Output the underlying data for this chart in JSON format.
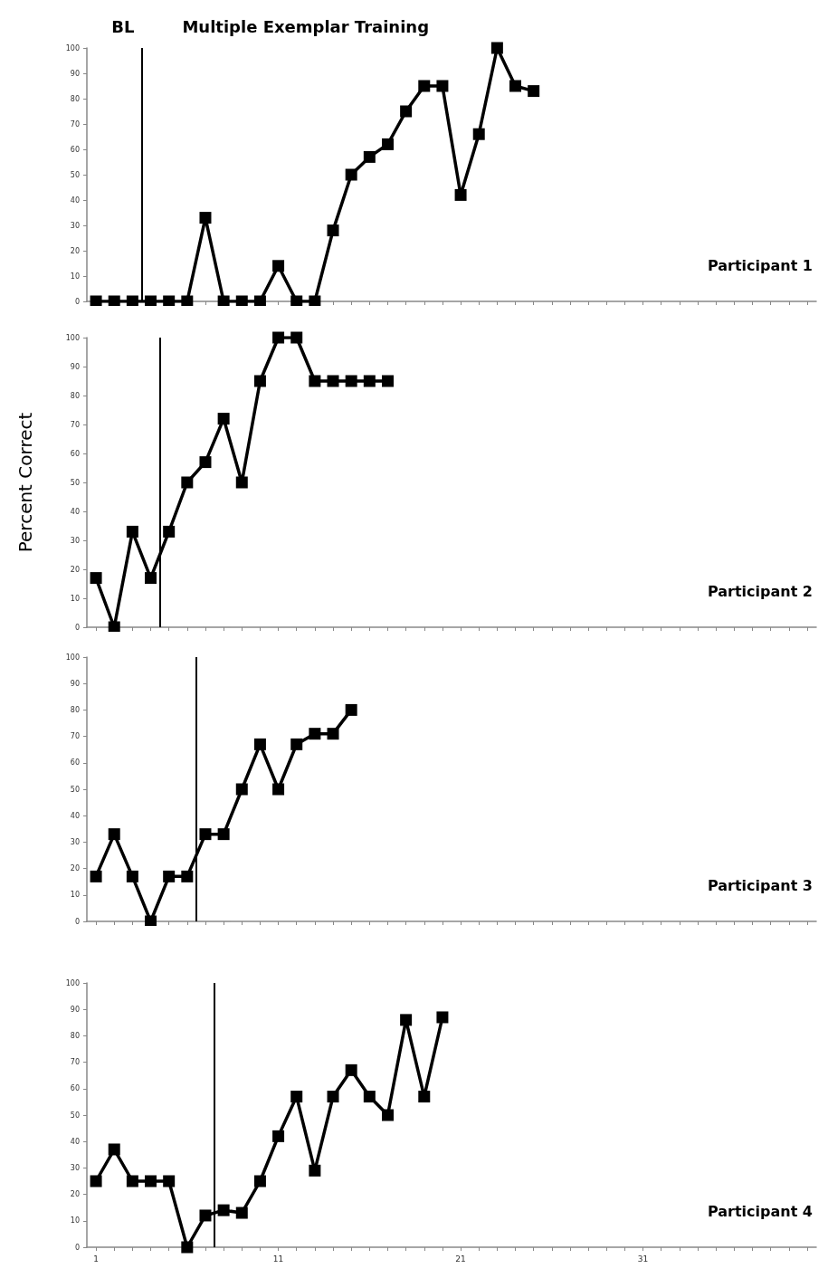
{
  "chart_data": [
    {
      "type": "line",
      "annotations": [
        "BL",
        "Multiple Exemplar Training",
        "Participant 1"
      ],
      "x": [
        1,
        2,
        3,
        4,
        5,
        6,
        7,
        8,
        9,
        10,
        11,
        12,
        13,
        14,
        15,
        16,
        17,
        18,
        19,
        20,
        21,
        22,
        23,
        24,
        25
      ],
      "series": [
        {
          "color": "#000000",
          "values": [
            0,
            0,
            0,
            0,
            0,
            0,
            33,
            0,
            0,
            0,
            14,
            0,
            0,
            28,
            50,
            57,
            62,
            75,
            85,
            85,
            42,
            66,
            100,
            85,
            83
          ]
        }
      ],
      "ref_lines": [
        {
          "axis": "x",
          "value": 3.5,
          "color": "#000000"
        }
      ],
      "xlim": [
        0.5,
        40.5
      ],
      "xticks": [
        1,
        {
          "value": 2,
          "label": null
        },
        {
          "value": 3,
          "label": null
        },
        {
          "value": 4,
          "label": null
        },
        {
          "value": 5,
          "label": null
        },
        {
          "value": 6,
          "label": null
        },
        {
          "value": 7,
          "label": null
        },
        {
          "value": 8,
          "label": null
        },
        {
          "value": 9,
          "label": null
        },
        {
          "value": 10,
          "label": null
        },
        11,
        {
          "value": 12,
          "label": null
        },
        {
          "value": 13,
          "label": null
        },
        {
          "value": 14,
          "label": null
        },
        {
          "value": 15,
          "label": null
        },
        {
          "value": 16,
          "label": null
        },
        {
          "value": 17,
          "label": null
        },
        {
          "value": 18,
          "label": null
        },
        {
          "value": 19,
          "label": null
        },
        {
          "value": 20,
          "label": null
        },
        21,
        {
          "value": 22,
          "label": null
        },
        {
          "value": 23,
          "label": null
        },
        {
          "value": 24,
          "label": null
        },
        {
          "value": 25,
          "label": null
        },
        {
          "value": 26,
          "label": null
        },
        {
          "value": 27,
          "label": null
        },
        {
          "value": 28,
          "label": null
        },
        {
          "value": 29,
          "label": null
        },
        {
          "value": 30,
          "label": null
        },
        31,
        {
          "value": 32,
          "label": null
        },
        {
          "value": 33,
          "label": null
        },
        {
          "value": 34,
          "label": null
        },
        {
          "value": 35,
          "label": null
        },
        {
          "value": 36,
          "label": null
        },
        {
          "value": 37,
          "label": null
        },
        {
          "value": 38,
          "label": null
        },
        {
          "value": 39,
          "label": null
        },
        {
          "value": 40,
          "label": null
        }
      ],
      "ylim": [
        0,
        100
      ],
      "yticks": [
        0,
        10,
        20,
        30,
        40,
        50,
        60,
        70,
        80,
        90,
        100
      ],
      "tick_labels": "y",
      "marker": "square",
      "line_style": "solid"
    },
    {
      "type": "line",
      "ylabel": "Percent Correct",
      "annotations": [
        "Participant 2"
      ],
      "x": [
        1,
        2,
        3,
        4,
        5,
        6,
        7,
        8,
        9,
        10,
        11,
        12,
        13,
        14,
        15,
        16,
        17
      ],
      "series": [
        {
          "color": "#000000",
          "values": [
            17,
            0,
            33,
            17,
            33,
            50,
            57,
            72,
            50,
            85,
            100,
            100,
            85,
            85,
            85,
            85,
            85
          ]
        }
      ],
      "ref_lines": [
        {
          "axis": "x",
          "value": 4.5,
          "color": "#000000"
        }
      ],
      "xlim": [
        0.5,
        40.5
      ],
      "xticks": [
        1,
        {
          "value": 2,
          "label": null
        },
        {
          "value": 3,
          "label": null
        },
        {
          "value": 4,
          "label": null
        },
        {
          "value": 5,
          "label": null
        },
        {
          "value": 6,
          "label": null
        },
        {
          "value": 7,
          "label": null
        },
        {
          "value": 8,
          "label": null
        },
        {
          "value": 9,
          "label": null
        },
        {
          "value": 10,
          "label": null
        },
        11,
        {
          "value": 12,
          "label": null
        },
        {
          "value": 13,
          "label": null
        },
        {
          "value": 14,
          "label": null
        },
        {
          "value": 15,
          "label": null
        },
        {
          "value": 16,
          "label": null
        },
        {
          "value": 17,
          "label": null
        },
        {
          "value": 18,
          "label": null
        },
        {
          "value": 19,
          "label": null
        },
        {
          "value": 20,
          "label": null
        },
        21,
        {
          "value": 22,
          "label": null
        },
        {
          "value": 23,
          "label": null
        },
        {
          "value": 24,
          "label": null
        },
        {
          "value": 25,
          "label": null
        },
        {
          "value": 26,
          "label": null
        },
        {
          "value": 27,
          "label": null
        },
        {
          "value": 28,
          "label": null
        },
        {
          "value": 29,
          "label": null
        },
        {
          "value": 30,
          "label": null
        },
        31,
        {
          "value": 32,
          "label": null
        },
        {
          "value": 33,
          "label": null
        },
        {
          "value": 34,
          "label": null
        },
        {
          "value": 35,
          "label": null
        },
        {
          "value": 36,
          "label": null
        },
        {
          "value": 37,
          "label": null
        },
        {
          "value": 38,
          "label": null
        },
        {
          "value": 39,
          "label": null
        },
        {
          "value": 40,
          "label": null
        }
      ],
      "ylim": [
        0,
        100
      ],
      "yticks": [
        0,
        10,
        20,
        30,
        40,
        50,
        60,
        70,
        80,
        90,
        100
      ],
      "tick_labels": "y",
      "marker": "square",
      "line_style": "solid"
    },
    {
      "type": "line",
      "annotations": [
        "Participant 3"
      ],
      "x": [
        1,
        2,
        3,
        4,
        5,
        6,
        7,
        8,
        9,
        10,
        11,
        12,
        13,
        14,
        15
      ],
      "series": [
        {
          "color": "#000000",
          "values": [
            17,
            33,
            17,
            0,
            17,
            17,
            33,
            33,
            50,
            67,
            50,
            67,
            71,
            71,
            80
          ]
        }
      ],
      "ref_lines": [
        {
          "axis": "x",
          "value": 6.5,
          "color": "#000000"
        }
      ],
      "xlim": [
        0.5,
        40.5
      ],
      "xticks": [
        1,
        {
          "value": 2,
          "label": null
        },
        {
          "value": 3,
          "label": null
        },
        {
          "value": 4,
          "label": null
        },
        {
          "value": 5,
          "label": null
        },
        {
          "value": 6,
          "label": null
        },
        {
          "value": 7,
          "label": null
        },
        {
          "value": 8,
          "label": null
        },
        {
          "value": 9,
          "label": null
        },
        {
          "value": 10,
          "label": null
        },
        11,
        {
          "value": 12,
          "label": null
        },
        {
          "value": 13,
          "label": null
        },
        {
          "value": 14,
          "label": null
        },
        {
          "value": 15,
          "label": null
        },
        {
          "value": 16,
          "label": null
        },
        {
          "value": 17,
          "label": null
        },
        {
          "value": 18,
          "label": null
        },
        {
          "value": 19,
          "label": null
        },
        {
          "value": 20,
          "label": null
        },
        21,
        {
          "value": 22,
          "label": null
        },
        {
          "value": 23,
          "label": null
        },
        {
          "value": 24,
          "label": null
        },
        {
          "value": 25,
          "label": null
        },
        {
          "value": 26,
          "label": null
        },
        {
          "value": 27,
          "label": null
        },
        {
          "value": 28,
          "label": null
        },
        {
          "value": 29,
          "label": null
        },
        {
          "value": 30,
          "label": null
        },
        31,
        {
          "value": 32,
          "label": null
        },
        {
          "value": 33,
          "label": null
        },
        {
          "value": 34,
          "label": null
        },
        {
          "value": 35,
          "label": null
        },
        {
          "value": 36,
          "label": null
        },
        {
          "value": 37,
          "label": null
        },
        {
          "value": 38,
          "label": null
        },
        {
          "value": 39,
          "label": null
        },
        {
          "value": 40,
          "label": null
        }
      ],
      "ylim": [
        0,
        100
      ],
      "yticks": [
        0,
        10,
        20,
        30,
        40,
        50,
        60,
        70,
        80,
        90,
        100
      ],
      "tick_labels": "y",
      "marker": "square",
      "line_style": "solid"
    },
    {
      "type": "line",
      "annotations": [
        "Participant 4"
      ],
      "x": [
        1,
        2,
        3,
        4,
        5,
        6,
        7,
        8,
        9,
        10,
        11,
        12,
        13,
        14,
        15,
        16,
        17,
        18,
        19,
        20
      ],
      "series": [
        {
          "color": "#000000",
          "values": [
            25,
            37,
            25,
            25,
            25,
            0,
            12,
            14,
            13,
            25,
            42,
            57,
            29,
            57,
            67,
            57,
            50,
            86,
            57,
            87
          ]
        }
      ],
      "ref_lines": [
        {
          "axis": "x",
          "value": 7.5,
          "color": "#000000"
        }
      ],
      "xlim": [
        0.5,
        40.5
      ],
      "xticks": [
        1,
        {
          "value": 2,
          "label": null
        },
        {
          "value": 3,
          "label": null
        },
        {
          "value": 4,
          "label": null
        },
        {
          "value": 5,
          "label": null
        },
        {
          "value": 6,
          "label": null
        },
        {
          "value": 7,
          "label": null
        },
        {
          "value": 8,
          "label": null
        },
        {
          "value": 9,
          "label": null
        },
        {
          "value": 10,
          "label": null
        },
        11,
        {
          "value": 12,
          "label": null
        },
        {
          "value": 13,
          "label": null
        },
        {
          "value": 14,
          "label": null
        },
        {
          "value": 15,
          "label": null
        },
        {
          "value": 16,
          "label": null
        },
        {
          "value": 17,
          "label": null
        },
        {
          "value": 18,
          "label": null
        },
        {
          "value": 19,
          "label": null
        },
        {
          "value": 20,
          "label": null
        },
        21,
        {
          "value": 22,
          "label": null
        },
        {
          "value": 23,
          "label": null
        },
        {
          "value": 24,
          "label": null
        },
        {
          "value": 25,
          "label": null
        },
        {
          "value": 26,
          "label": null
        },
        {
          "value": 27,
          "label": null
        },
        {
          "value": 28,
          "label": null
        },
        {
          "value": 29,
          "label": null
        },
        {
          "value": 30,
          "label": null
        },
        31,
        {
          "value": 32,
          "label": null
        },
        {
          "value": 33,
          "label": null
        },
        {
          "value": 34,
          "label": null
        },
        {
          "value": 35,
          "label": null
        },
        {
          "value": 36,
          "label": null
        },
        {
          "value": 37,
          "label": null
        },
        {
          "value": 38,
          "label": null
        },
        {
          "value": 39,
          "label": null
        },
        {
          "value": 40,
          "label": null
        }
      ],
      "ylim": [
        0,
        100
      ],
      "yticks": [
        0,
        10,
        20,
        30,
        40,
        50,
        60,
        70,
        80,
        90,
        100
      ],
      "marker": "square",
      "line_style": "solid"
    }
  ]
}
